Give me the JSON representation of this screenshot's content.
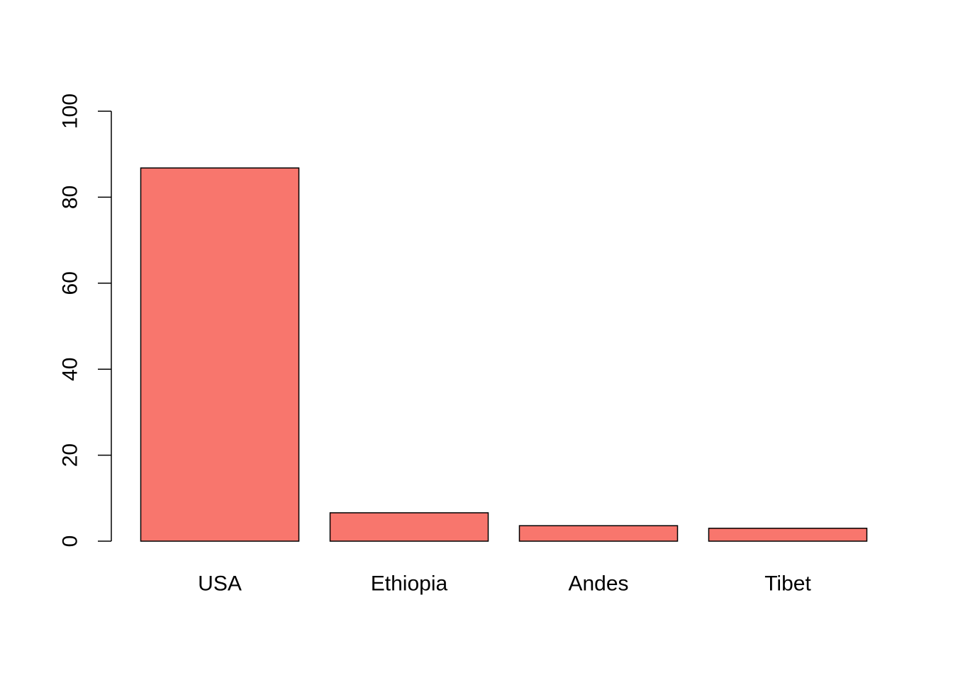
{
  "chart_data": {
    "type": "bar",
    "title": "",
    "xlabel": "",
    "ylabel": "",
    "categories": [
      "USA",
      "Ethiopia",
      "Andes",
      "Tibet"
    ],
    "values": [
      86.8,
      6.6,
      3.6,
      3.0
    ],
    "ylim": [
      0,
      100
    ],
    "yticks": [
      0,
      20,
      40,
      60,
      80,
      100
    ],
    "ytick_labels": [
      "0",
      "20",
      "40",
      "60",
      "80",
      "100"
    ],
    "bar_color": "#F8766D",
    "bar_edge_color": "#000000",
    "grid": false,
    "legend": "none"
  }
}
